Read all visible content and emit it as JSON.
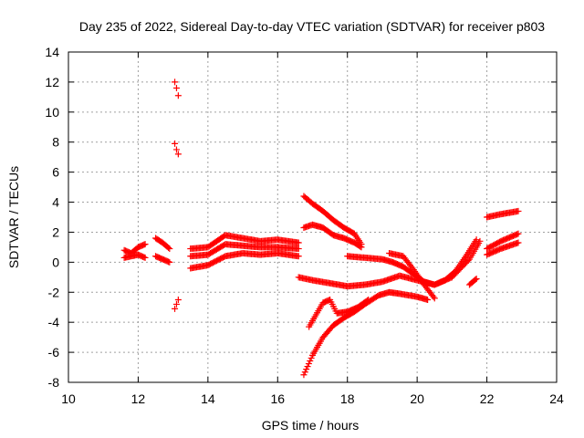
{
  "chart_data": {
    "type": "scatter",
    "title": "Day 235 of 2022, Sidereal Day-to-day VTEC variation (SDTVAR) for receiver p803",
    "xlabel": "GPS time / hours",
    "ylabel": "SDTVAR / TECUs",
    "xlim": [
      10,
      24
    ],
    "ylim": [
      -8,
      14
    ],
    "xticks": [
      10,
      12,
      14,
      16,
      18,
      20,
      22,
      24
    ],
    "yticks": [
      -8,
      -6,
      -4,
      -2,
      0,
      2,
      4,
      6,
      8,
      10,
      12,
      14
    ],
    "grid": true,
    "marker": "+",
    "color": "#ff0000",
    "series": [
      {
        "x": [
          11.6,
          11.8,
          12.0,
          12.2
        ],
        "y": [
          0.8,
          0.6,
          1.0,
          1.2
        ]
      },
      {
        "x": [
          11.6,
          11.8,
          12.0,
          12.2
        ],
        "y": [
          0.3,
          0.4,
          0.5,
          0.3
        ]
      },
      {
        "x": [
          12.5,
          12.7,
          12.9
        ],
        "y": [
          1.6,
          1.3,
          0.9
        ]
      },
      {
        "x": [
          12.5,
          12.7,
          12.9
        ],
        "y": [
          0.4,
          0.2,
          0.0
        ]
      },
      {
        "x": [
          13.05,
          13.1,
          13.15
        ],
        "y": [
          12.0,
          11.6,
          11.1
        ]
      },
      {
        "x": [
          13.05,
          13.1,
          13.15
        ],
        "y": [
          7.9,
          7.5,
          7.2
        ]
      },
      {
        "x": [
          13.05,
          13.1,
          13.15
        ],
        "y": [
          -3.1,
          -2.8,
          -2.5
        ]
      },
      {
        "x": [
          13.5,
          14.0,
          14.5,
          15.0,
          15.5,
          16.0,
          16.6
        ],
        "y": [
          0.9,
          1.0,
          1.8,
          1.6,
          1.4,
          1.5,
          1.3
        ]
      },
      {
        "x": [
          13.5,
          14.0,
          14.5,
          15.0,
          15.5,
          16.0,
          16.6
        ],
        "y": [
          0.4,
          0.5,
          1.2,
          1.1,
          1.0,
          1.0,
          0.9
        ]
      },
      {
        "x": [
          13.5,
          14.0,
          14.5,
          15.0,
          15.5,
          16.0,
          16.6
        ],
        "y": [
          -0.4,
          -0.2,
          0.4,
          0.6,
          0.5,
          0.6,
          0.4
        ]
      },
      {
        "x": [
          16.75,
          17.0,
          17.3,
          17.6,
          17.9,
          18.2,
          18.4
        ],
        "y": [
          4.4,
          3.9,
          3.4,
          2.8,
          2.3,
          1.9,
          1.2
        ]
      },
      {
        "x": [
          16.75,
          17.0,
          17.3,
          17.6,
          17.9,
          18.2,
          18.4
        ],
        "y": [
          2.3,
          2.5,
          2.3,
          1.8,
          1.6,
          1.3,
          1.0
        ]
      },
      {
        "x": [
          16.6,
          17.0,
          17.5,
          18.0,
          18.5,
          19.0,
          19.5,
          20.0,
          20.5,
          21.0,
          21.5,
          21.8
        ],
        "y": [
          -1.0,
          -1.2,
          -1.4,
          -1.6,
          -1.5,
          -1.3,
          -0.9,
          -1.2,
          -1.5,
          -1.0,
          0.2,
          1.4
        ]
      },
      {
        "x": [
          16.75,
          17.0,
          17.3,
          17.6,
          17.9,
          18.2,
          18.5,
          18.9,
          19.2,
          19.5,
          20.0,
          20.3
        ],
        "y": [
          -7.5,
          -6.2,
          -5.0,
          -4.2,
          -3.7,
          -3.3,
          -2.8,
          -2.2,
          -2.0,
          -2.1,
          -2.3,
          -2.5
        ]
      },
      {
        "x": [
          16.9,
          17.1,
          17.3,
          17.5,
          17.7,
          18.0,
          18.3,
          18.6
        ],
        "y": [
          -4.3,
          -3.5,
          -2.7,
          -2.5,
          -3.4,
          -3.3,
          -3.0,
          -2.5
        ]
      },
      {
        "x": [
          18.0,
          18.5,
          19.0,
          19.3,
          19.6,
          19.9,
          20.2,
          20.5,
          20.8,
          21.1,
          21.4,
          21.7
        ],
        "y": [
          0.4,
          0.3,
          0.2,
          0.0,
          -0.3,
          -0.8,
          -1.3,
          -1.5,
          -1.2,
          -0.6,
          0.4,
          1.5
        ]
      },
      {
        "x": [
          19.2,
          19.6,
          19.9,
          20.2,
          20.5
        ],
        "y": [
          0.6,
          0.4,
          -0.5,
          -1.5,
          -2.4
        ]
      },
      {
        "x": [
          21.5,
          21.7
        ],
        "y": [
          -1.5,
          -1.1
        ]
      },
      {
        "x": [
          22.0,
          22.4,
          22.9
        ],
        "y": [
          3.0,
          3.2,
          3.4
        ]
      },
      {
        "x": [
          22.0,
          22.4,
          22.9
        ],
        "y": [
          0.9,
          1.4,
          1.9
        ]
      },
      {
        "x": [
          22.0,
          22.4,
          22.9
        ],
        "y": [
          0.5,
          0.9,
          1.3
        ]
      }
    ]
  }
}
